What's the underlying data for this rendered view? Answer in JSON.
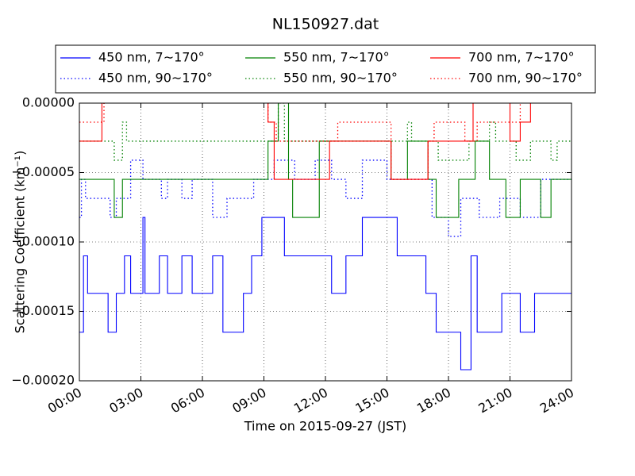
{
  "chart_data": {
    "type": "line",
    "title": "NL150927.dat",
    "x_label": "Time on 2015-09-27 (JST)",
    "y_label": "Scattering Coefficient (km⁻¹)",
    "xlim": [
      0,
      24
    ],
    "xticks": [
      {
        "value": 0,
        "label": "00:00"
      },
      {
        "value": 3,
        "label": "03:00"
      },
      {
        "value": 6,
        "label": "06:00"
      },
      {
        "value": 9,
        "label": "09:00"
      },
      {
        "value": 12,
        "label": "12:00"
      },
      {
        "value": 15,
        "label": "15:00"
      },
      {
        "value": 18,
        "label": "18:00"
      },
      {
        "value": 21,
        "label": "21:00"
      },
      {
        "value": 24,
        "label": "24:00"
      }
    ],
    "ylim": [
      -0.0002,
      0
    ],
    "yticks": [
      {
        "value": -0.0002,
        "label": "−0.00020"
      },
      {
        "value": -0.00015,
        "label": "−0.00015"
      },
      {
        "value": -0.0001,
        "label": "−0.00010"
      },
      {
        "value": -5e-05,
        "label": "−0.00005"
      },
      {
        "value": 0,
        "label": "0.00000"
      }
    ],
    "grid": true,
    "drawstyle": "steps-post",
    "series": [
      {
        "name": "450 nm, 7∼170°",
        "color": "#0000ff",
        "linestyle": "solid",
        "x": [
          0,
          0.2,
          0.4,
          1.4,
          1.8,
          2.2,
          2.5,
          3.1,
          3.2,
          3.9,
          4.3,
          5.0,
          5.5,
          6.5,
          7.0,
          8.0,
          8.4,
          8.9,
          10.0,
          12.0,
          12.3,
          13.0,
          13.8,
          15.5,
          16.9,
          17.4,
          18.6,
          19.1,
          19.4,
          20.6,
          21.5,
          22.2,
          24
        ],
        "values": [
          -0.000165,
          -0.00011,
          -0.000137,
          -0.000165,
          -0.000137,
          -0.00011,
          -0.000137,
          -8.23e-05,
          -0.000137,
          -0.00011,
          -0.000137,
          -0.00011,
          -0.000137,
          -0.00011,
          -0.000165,
          -0.000137,
          -0.00011,
          -8.23e-05,
          -0.00011,
          -0.00011,
          -0.000137,
          -0.00011,
          -8.23e-05,
          -0.00011,
          -0.000137,
          -0.000165,
          -0.000192,
          -0.00011,
          -0.000165,
          -0.000137,
          -0.000165,
          -0.000137,
          -0.000137
        ]
      },
      {
        "name": "450 nm, 90∼170°",
        "color": "#0000ff",
        "linestyle": "dotted",
        "x": [
          0,
          0.1,
          0.3,
          1.5,
          1.8,
          2.5,
          3.1,
          4.0,
          4.3,
          5.0,
          5.5,
          6.5,
          7.2,
          8.5,
          9.5,
          10.5,
          11.5,
          12.3,
          13.0,
          13.8,
          15.0,
          17.2,
          18.0,
          18.6,
          19.5,
          20.5,
          21.5,
          22.5,
          24
        ],
        "values": [
          -8.23e-05,
          -5.49e-05,
          -6.86e-05,
          -8.23e-05,
          -6.86e-05,
          -4.11e-05,
          -5.49e-05,
          -6.86e-05,
          -5.49e-05,
          -6.86e-05,
          -5.49e-05,
          -8.23e-05,
          -6.86e-05,
          -5.49e-05,
          -4.11e-05,
          -5.49e-05,
          -4.11e-05,
          -5.49e-05,
          -6.86e-05,
          -4.11e-05,
          -5.49e-05,
          -8.23e-05,
          -9.6e-05,
          -6.86e-05,
          -8.23e-05,
          -6.86e-05,
          -8.23e-05,
          -5.49e-05,
          -5.49e-05
        ]
      },
      {
        "name": "550 nm, 7∼170°",
        "color": "#008000",
        "linestyle": "solid",
        "x": [
          0,
          1.7,
          2.1,
          9.2,
          9.7,
          10.2,
          10.4,
          11.7,
          15.2,
          16.0,
          17.0,
          17.4,
          18.5,
          19.3,
          20.0,
          20.8,
          21.5,
          22.5,
          23.0,
          24
        ],
        "values": [
          -5.49e-05,
          -8.23e-05,
          -5.49e-05,
          -2.74e-05,
          0,
          -5.49e-05,
          -8.23e-05,
          -2.74e-05,
          -5.49e-05,
          -2.74e-05,
          -5.49e-05,
          -8.23e-05,
          -5.49e-05,
          -2.74e-05,
          -5.49e-05,
          -8.23e-05,
          -5.49e-05,
          -8.23e-05,
          -5.49e-05,
          -5.49e-05
        ]
      },
      {
        "name": "550 nm, 90∼170°",
        "color": "#008000",
        "linestyle": "dotted",
        "x": [
          0,
          1.7,
          2.1,
          2.3,
          9.7,
          10.0,
          16.0,
          16.2,
          17.5,
          19.0,
          20.0,
          20.3,
          21.3,
          22.0,
          23.0,
          23.3,
          24
        ],
        "values": [
          -2.74e-05,
          -4.11e-05,
          -1.37e-05,
          -2.74e-05,
          0,
          -2.74e-05,
          -1.37e-05,
          -2.74e-05,
          -4.11e-05,
          -2.74e-05,
          -1.37e-05,
          -2.74e-05,
          -4.11e-05,
          -2.74e-05,
          -4.11e-05,
          -2.74e-05,
          -2.74e-05
        ]
      },
      {
        "name": "700 nm, 7∼170°",
        "color": "#ff0000",
        "linestyle": "solid",
        "x": [
          0,
          1.1,
          9.2,
          9.5,
          12.2,
          15.2,
          17.0,
          19.2,
          21.0,
          21.5,
          22.0,
          24
        ],
        "values": [
          -2.74e-05,
          5e-06,
          -1.37e-05,
          -5.49e-05,
          -2.74e-05,
          -5.49e-05,
          -2.74e-05,
          0,
          -2.74e-05,
          -1.37e-05,
          5e-06,
          5e-06
        ]
      },
      {
        "name": "700 nm, 90∼170°",
        "color": "#ff0000",
        "linestyle": "dotted",
        "x": [
          0,
          1.2,
          9.2,
          9.6,
          12.6,
          15.2,
          17.0,
          17.3,
          18.8,
          19.4,
          21.5,
          24
        ],
        "values": [
          -1.37e-05,
          5e-06,
          -1.37e-05,
          -2.74e-05,
          -1.37e-05,
          -5.49e-05,
          -2.74e-05,
          -1.37e-05,
          -2.74e-05,
          -1.37e-05,
          5e-06,
          5e-06
        ]
      }
    ]
  }
}
